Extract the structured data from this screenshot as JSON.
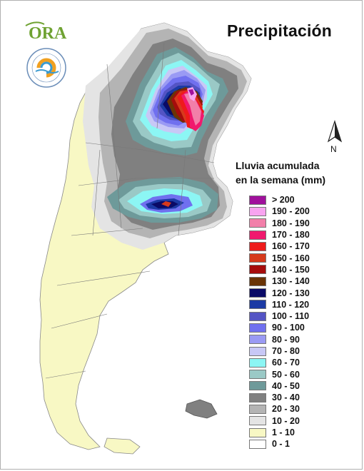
{
  "header": {
    "title": "Precipitación"
  },
  "logos": {
    "primary": "ORA",
    "seal_text": "INSTITUTO NACIONAL DE TECNOLOGÍA AGROPECUARIA ARGENTINA"
  },
  "north": {
    "label": "N"
  },
  "legend": {
    "title_line1": "Lluvia acumulada",
    "title_line2": "en la semana (mm)",
    "classes": [
      {
        "label": "> 200",
        "color": "#a0109c"
      },
      {
        "label": "190 - 200",
        "color": "#f8a4f0"
      },
      {
        "label": "180 - 190",
        "color": "#f27fa9"
      },
      {
        "label": "170 - 180",
        "color": "#f0196e"
      },
      {
        "label": "160 - 170",
        "color": "#ee1b1b"
      },
      {
        "label": "150 - 160",
        "color": "#d63a1c"
      },
      {
        "label": "140 - 150",
        "color": "#a60c0c"
      },
      {
        "label": "130 - 140",
        "color": "#6a3406"
      },
      {
        "label": "120 - 130",
        "color": "#0a0a66"
      },
      {
        "label": "110 - 120",
        "color": "#1c3aa4"
      },
      {
        "label": "100 - 110",
        "color": "#5454c4"
      },
      {
        "label": "90 - 100",
        "color": "#7070ef"
      },
      {
        "label": "80 - 90",
        "color": "#9a9af4"
      },
      {
        "label": "70 - 80",
        "color": "#c8c8f6"
      },
      {
        "label": "60 - 70",
        "color": "#8cf6f4"
      },
      {
        "label": "50 - 60",
        "color": "#9ac9c6"
      },
      {
        "label": "40 - 50",
        "color": "#6e9a9a"
      },
      {
        "label": "30 - 40",
        "color": "#808080"
      },
      {
        "label": "20 - 30",
        "color": "#b4b4b4"
      },
      {
        "label": "10 - 20",
        "color": "#e4e4e4"
      },
      {
        "label": "1 - 10",
        "color": "#f8f8c4"
      },
      {
        "label": "0 - 1",
        "color": "#ffffff"
      }
    ]
  }
}
